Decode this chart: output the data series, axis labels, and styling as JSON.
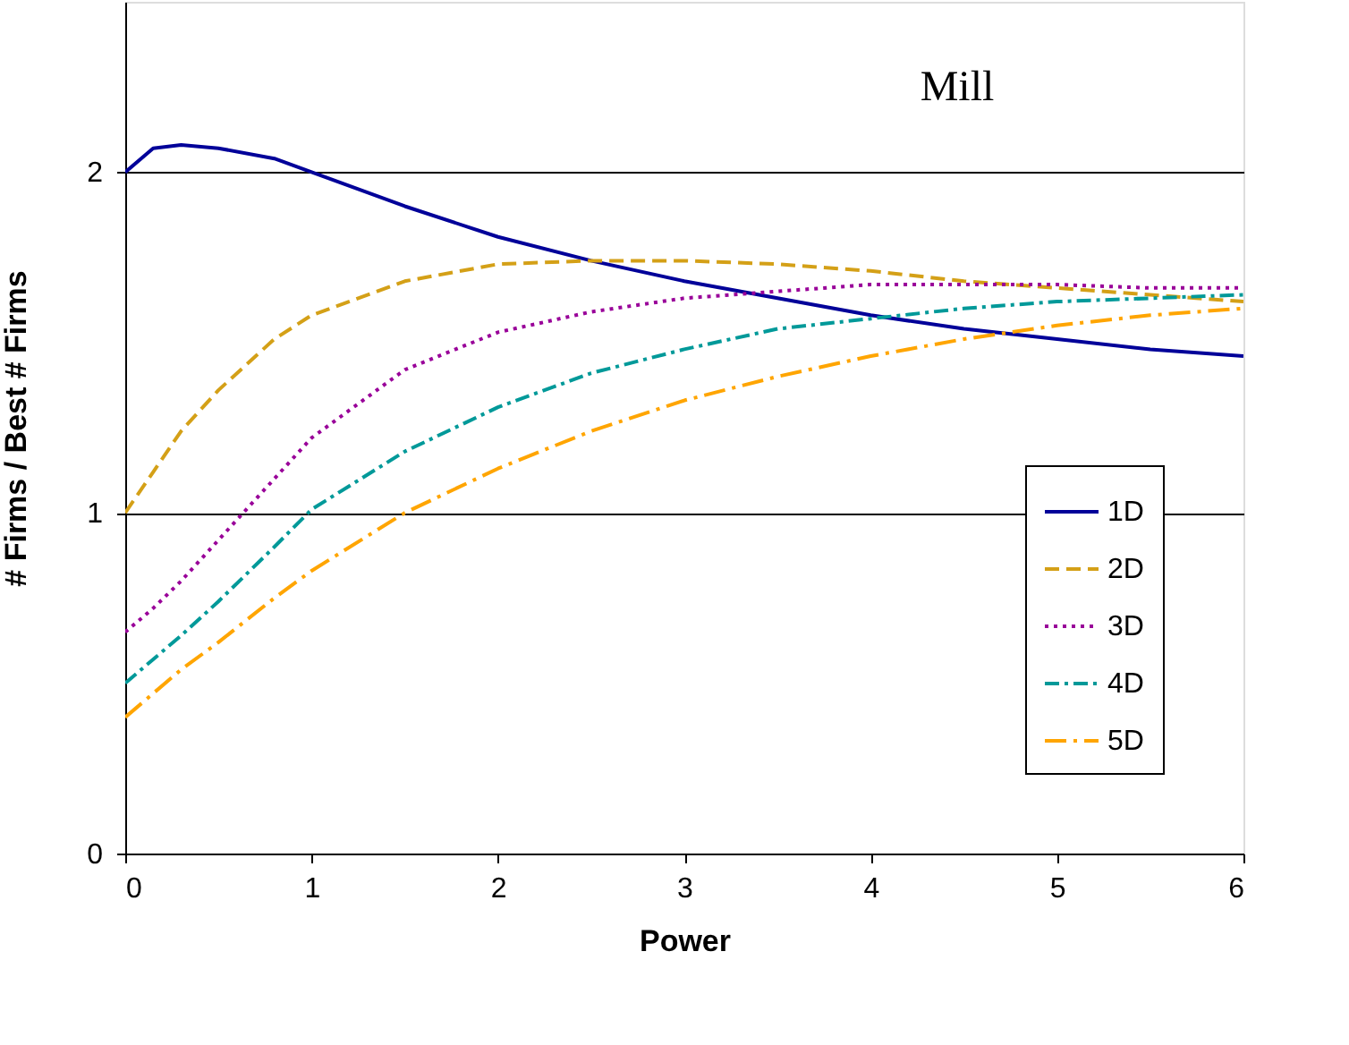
{
  "chart_data": {
    "type": "line",
    "xlabel": "Power",
    "ylabel": "# Firms / Best # Firms",
    "annotations": [
      "Mill"
    ],
    "x": [
      0,
      0.15,
      0.3,
      0.5,
      0.8,
      1,
      1.5,
      2,
      2.5,
      3,
      3.5,
      4,
      4.5,
      5,
      5.5,
      6
    ],
    "series": [
      {
        "name": "1D",
        "color": "#000099",
        "line_style": "solid",
        "values": [
          2.0,
          2.07,
          2.08,
          2.07,
          2.04,
          2.0,
          1.9,
          1.81,
          1.74,
          1.68,
          1.63,
          1.58,
          1.54,
          1.51,
          1.48,
          1.46
        ]
      },
      {
        "name": "2D",
        "color": "#d4a017",
        "line_style": "dashed",
        "values": [
          1.0,
          1.12,
          1.24,
          1.36,
          1.51,
          1.58,
          1.68,
          1.73,
          1.74,
          1.74,
          1.73,
          1.71,
          1.68,
          1.66,
          1.64,
          1.62
        ]
      },
      {
        "name": "3D",
        "color": "#990099",
        "line_style": "dotted",
        "values": [
          0.65,
          0.72,
          0.8,
          0.92,
          1.1,
          1.22,
          1.42,
          1.53,
          1.59,
          1.63,
          1.65,
          1.67,
          1.67,
          1.67,
          1.66,
          1.66
        ]
      },
      {
        "name": "4D",
        "color": "#009999",
        "line_style": "dashdot",
        "values": [
          0.5,
          0.57,
          0.64,
          0.74,
          0.9,
          1.01,
          1.18,
          1.31,
          1.41,
          1.48,
          1.54,
          1.57,
          1.6,
          1.62,
          1.63,
          1.64
        ]
      },
      {
        "name": "5D",
        "color": "#ffa500",
        "line_style": "longdashdot",
        "values": [
          0.4,
          0.47,
          0.54,
          0.62,
          0.75,
          0.83,
          1.0,
          1.13,
          1.24,
          1.33,
          1.4,
          1.46,
          1.51,
          1.55,
          1.58,
          1.6
        ]
      }
    ],
    "xlim": [
      0,
      6
    ],
    "xticks": [
      0,
      1,
      2,
      3,
      4,
      5,
      6
    ],
    "ylim": [
      0,
      2.5
    ],
    "yticks": [
      0,
      1,
      2
    ],
    "grid": "y",
    "legend": "bottom right"
  }
}
